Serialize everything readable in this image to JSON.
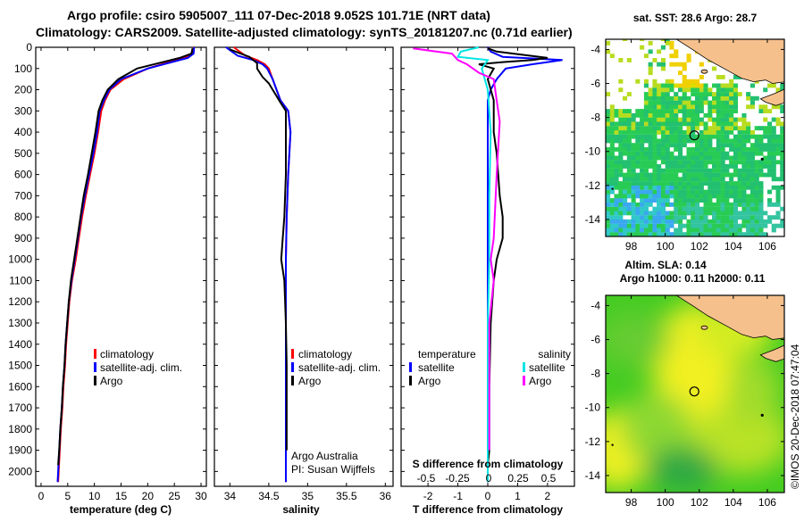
{
  "header": {
    "line1": "Argo profile: csiro 5905007_111 07-Dec-2018 9.052S 101.71E (NRT data)",
    "line2": "Climatology: CARS2009. Satellite-adjusted climatology: synTS_20181207.nc (0.71d earlier)"
  },
  "watermark": "©IMOS 20-Dec-2018 07:47:04",
  "colors": {
    "climatology": "#ff0000",
    "satellite": "#0000ff",
    "argo": "#000000",
    "sal_satellite": "#00e5e5",
    "sal_argo": "#ff00ff",
    "land": "#f5c08c"
  },
  "chart_data": [
    {
      "id": "temperature",
      "type": "line",
      "xlabel": "temperature (deg C)",
      "ylabel": "",
      "xlim": [
        -1,
        31
      ],
      "ylim": [
        2070,
        0
      ],
      "xticks": [
        0,
        5,
        10,
        15,
        20,
        25,
        30
      ],
      "yticks": [
        0,
        100,
        200,
        300,
        400,
        500,
        600,
        700,
        800,
        900,
        1000,
        1100,
        1200,
        1300,
        1400,
        1500,
        1600,
        1700,
        1800,
        1900,
        2000
      ],
      "legend": [
        "climatology",
        "satellite-adj. clim.",
        "Argo"
      ],
      "series": [
        {
          "name": "climatology",
          "color": "#ff0000",
          "points": [
            [
              28.6,
              0
            ],
            [
              28.5,
              30
            ],
            [
              27,
              50
            ],
            [
              24,
              70
            ],
            [
              20,
              100
            ],
            [
              15.5,
              150
            ],
            [
              13,
              200
            ],
            [
              12,
              250
            ],
            [
              11.3,
              300
            ],
            [
              10.7,
              400
            ],
            [
              10,
              500
            ],
            [
              9.2,
              600
            ],
            [
              8.4,
              700
            ],
            [
              7.7,
              800
            ],
            [
              7.1,
              900
            ],
            [
              6.5,
              1000
            ],
            [
              5.8,
              1100
            ],
            [
              5.3,
              1200
            ],
            [
              5.0,
              1300
            ],
            [
              4.7,
              1400
            ],
            [
              4.5,
              1500
            ],
            [
              4.2,
              1600
            ],
            [
              4.0,
              1700
            ],
            [
              3.7,
              1800
            ],
            [
              3.5,
              1900
            ],
            [
              3.3,
              2000
            ],
            [
              3.2,
              2050
            ]
          ]
        },
        {
          "name": "satellite-adj. clim.",
          "color": "#0000ff",
          "points": [
            [
              28.7,
              0
            ],
            [
              28.6,
              30
            ],
            [
              27.5,
              50
            ],
            [
              24.5,
              70
            ],
            [
              20,
              100
            ],
            [
              15,
              150
            ],
            [
              12.8,
              200
            ],
            [
              11.8,
              250
            ],
            [
              11,
              300
            ],
            [
              10.5,
              400
            ],
            [
              9.8,
              500
            ],
            [
              9.0,
              600
            ],
            [
              8.2,
              700
            ],
            [
              7.5,
              800
            ],
            [
              6.9,
              900
            ],
            [
              6.3,
              1000
            ],
            [
              5.7,
              1100
            ],
            [
              5.2,
              1200
            ],
            [
              4.9,
              1300
            ],
            [
              4.6,
              1400
            ],
            [
              4.4,
              1500
            ],
            [
              4.1,
              1600
            ],
            [
              3.9,
              1700
            ],
            [
              3.6,
              1800
            ],
            [
              3.4,
              1900
            ],
            [
              3.2,
              2000
            ],
            [
              3.1,
              2050
            ]
          ]
        },
        {
          "name": "Argo",
          "color": "#000000",
          "points": [
            [
              28.4,
              5
            ],
            [
              28.2,
              30
            ],
            [
              26,
              50
            ],
            [
              22,
              75
            ],
            [
              18,
              100
            ],
            [
              14.5,
              150
            ],
            [
              12.5,
              200
            ],
            [
              11.5,
              250
            ],
            [
              10.8,
              300
            ],
            [
              10.2,
              400
            ],
            [
              9.5,
              500
            ],
            [
              8.8,
              600
            ],
            [
              8.0,
              700
            ],
            [
              7.4,
              800
            ],
            [
              6.8,
              900
            ],
            [
              6.2,
              1000
            ],
            [
              5.6,
              1100
            ],
            [
              5.2,
              1200
            ],
            [
              4.9,
              1300
            ],
            [
              4.6,
              1400
            ],
            [
              4.4,
              1500
            ],
            [
              4.1,
              1600
            ],
            [
              3.9,
              1700
            ],
            [
              3.6,
              1800
            ],
            [
              3.4,
              1900
            ],
            [
              3.2,
              1970
            ]
          ]
        }
      ]
    },
    {
      "id": "salinity",
      "type": "line",
      "xlabel": "salinity",
      "ylabel": "",
      "xlim": [
        33.8,
        36.1
      ],
      "ylim": [
        2070,
        0
      ],
      "xticks": [
        34,
        34.5,
        35,
        35.5,
        36
      ],
      "legend": [
        "climatology",
        "satellite-adj. clim.",
        "Argo"
      ],
      "note": [
        "Argo Australia",
        "PI: Susan Wijffels"
      ],
      "series": [
        {
          "name": "climatology",
          "color": "#ff0000",
          "points": [
            [
              34.05,
              0
            ],
            [
              34.2,
              40
            ],
            [
              34.35,
              60
            ],
            [
              34.45,
              80
            ],
            [
              34.5,
              100
            ],
            [
              34.55,
              150
            ],
            [
              34.65,
              250
            ],
            [
              34.75,
              300
            ],
            [
              34.78,
              400
            ],
            [
              34.75,
              600
            ],
            [
              34.73,
              800
            ],
            [
              34.72,
              1000
            ],
            [
              34.72,
              1200
            ],
            [
              34.72,
              1400
            ],
            [
              34.72,
              1600
            ],
            [
              34.72,
              1800
            ],
            [
              34.72,
              2050
            ]
          ]
        },
        {
          "name": "satellite-adj. clim.",
          "color": "#0000ff",
          "points": [
            [
              33.95,
              0
            ],
            [
              34.1,
              40
            ],
            [
              34.3,
              60
            ],
            [
              34.42,
              80
            ],
            [
              34.48,
              100
            ],
            [
              34.55,
              150
            ],
            [
              34.65,
              250
            ],
            [
              34.75,
              300
            ],
            [
              34.78,
              400
            ],
            [
              34.75,
              600
            ],
            [
              34.73,
              800
            ],
            [
              34.72,
              1000
            ],
            [
              34.72,
              1200
            ],
            [
              34.72,
              1400
            ],
            [
              34.72,
              1600
            ],
            [
              34.72,
              1800
            ],
            [
              34.72,
              2050
            ]
          ]
        },
        {
          "name": "Argo",
          "color": "#000000",
          "points": [
            [
              34.0,
              10
            ],
            [
              34.25,
              45
            ],
            [
              34.35,
              75
            ],
            [
              34.35,
              100
            ],
            [
              34.42,
              140
            ],
            [
              34.5,
              170
            ],
            [
              34.55,
              200
            ],
            [
              34.65,
              260
            ],
            [
              34.72,
              300
            ],
            [
              34.72,
              400
            ],
            [
              34.72,
              600
            ],
            [
              34.7,
              800
            ],
            [
              34.68,
              900
            ],
            [
              34.66,
              1000
            ],
            [
              34.7,
              1100
            ],
            [
              34.72,
              1300
            ],
            [
              34.73,
              1500
            ],
            [
              34.73,
              1700
            ],
            [
              34.73,
              1900
            ]
          ]
        }
      ]
    },
    {
      "id": "differences",
      "type": "line",
      "xlabel": "T difference from climatology",
      "xlabel_top": "S difference from climatology",
      "xlim": [
        -2.9,
        2.9
      ],
      "ylim": [
        2070,
        0
      ],
      "xticks": [
        -2,
        -1,
        0,
        1,
        2
      ],
      "xticks_top": [
        "-0.5",
        "-0.25",
        "0",
        "0.25",
        "0.5"
      ],
      "legend_left": [
        "temperature",
        "satellite",
        "Argo"
      ],
      "legend_right": [
        "salinity",
        "satellite",
        "Argo"
      ],
      "series": [
        {
          "name": "temperature satellite",
          "color": "#0000ff",
          "points": [
            [
              0,
              0
            ],
            [
              0.1,
              20
            ],
            [
              0.5,
              45
            ],
            [
              2.5,
              60
            ],
            [
              1.5,
              80
            ],
            [
              0.6,
              100
            ],
            [
              0.3,
              150
            ],
            [
              0.1,
              200
            ],
            [
              0,
              250
            ],
            [
              0,
              400
            ],
            [
              0,
              600
            ],
            [
              0,
              1000
            ],
            [
              0,
              1400
            ],
            [
              0,
              2050
            ]
          ]
        },
        {
          "name": "temperature Argo",
          "color": "#000000",
          "points": [
            [
              0,
              5
            ],
            [
              0.3,
              20
            ],
            [
              2.0,
              50
            ],
            [
              1.5,
              60
            ],
            [
              0.5,
              70
            ],
            [
              -0.3,
              80
            ],
            [
              0.2,
              100
            ],
            [
              0,
              150
            ],
            [
              0.2,
              250
            ],
            [
              0.2,
              400
            ],
            [
              0.3,
              500
            ],
            [
              0.4,
              700
            ],
            [
              0.5,
              800
            ],
            [
              0.5,
              900
            ],
            [
              0.3,
              1000
            ],
            [
              0.2,
              1100
            ],
            [
              0.1,
              1300
            ],
            [
              0.05,
              1600
            ],
            [
              0.05,
              1900
            ],
            [
              0,
              1970
            ]
          ]
        },
        {
          "name": "salinity satellite",
          "color": "#00e5e5",
          "points": [
            [
              -0.3,
              0
            ],
            [
              -0.9,
              20
            ],
            [
              -1.0,
              45
            ],
            [
              0,
              60
            ],
            [
              -0.2,
              100
            ],
            [
              0,
              200
            ],
            [
              0.1,
              400
            ],
            [
              0.05,
              700
            ],
            [
              0.05,
              1000
            ],
            [
              0.0,
              1300
            ],
            [
              0.0,
              1800
            ],
            [
              0,
              2050
            ]
          ]
        },
        {
          "name": "salinity Argo",
          "color": "#ff00ff",
          "points": [
            [
              -2.5,
              5
            ],
            [
              -1.2,
              30
            ],
            [
              -1.0,
              60
            ],
            [
              -0.7,
              80
            ],
            [
              -0.3,
              120
            ],
            [
              0.2,
              150
            ],
            [
              0.3,
              250
            ],
            [
              0.4,
              350
            ],
            [
              0.3,
              600
            ],
            [
              0.2,
              900
            ],
            [
              0.1,
              1000
            ],
            [
              0.2,
              1100
            ],
            [
              0.05,
              1300
            ],
            [
              0.05,
              1600
            ],
            [
              0.05,
              1900
            ]
          ]
        }
      ]
    },
    {
      "id": "sst-map",
      "type": "heatmap",
      "title": "sat. SST: 28.6 Argo: 28.7",
      "xlim": [
        96.5,
        107
      ],
      "ylim": [
        -15,
        -3.4
      ],
      "xticks": [
        98,
        100,
        102,
        104,
        106
      ],
      "yticks": [
        -4,
        -6,
        -8,
        -10,
        -12,
        -14
      ],
      "marker": [
        101.71,
        -9.052
      ]
    },
    {
      "id": "sla-map",
      "type": "heatmap",
      "title_line1": "Altim. SLA: 0.14",
      "title_line2": "Argo h1000: 0.11 h2000: 0.11",
      "xlim": [
        96.5,
        107
      ],
      "ylim": [
        -15,
        -3.4
      ],
      "xticks": [
        98,
        100,
        102,
        104,
        106
      ],
      "yticks": [
        -4,
        -6,
        -8,
        -10,
        -12,
        -14
      ],
      "marker": [
        101.71,
        -9.052
      ]
    }
  ]
}
